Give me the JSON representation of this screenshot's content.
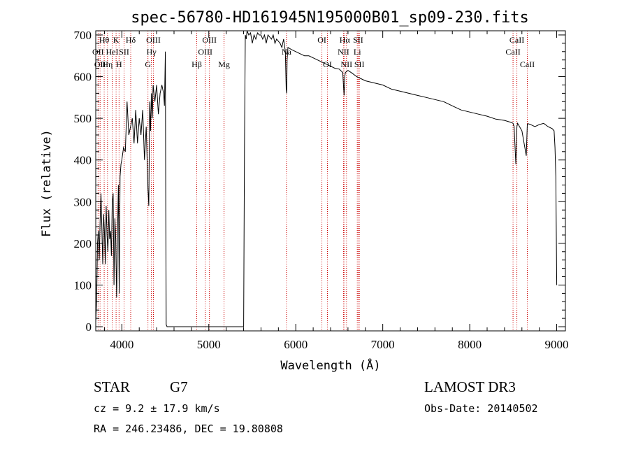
{
  "chart_data": {
    "type": "line",
    "title": "spec-56780-HD161945N195000B01_sp09-230.fits",
    "xlabel": "Wavelength (Å)",
    "ylabel": "Flux (relative)",
    "xlim": [
      3700,
      9100
    ],
    "ylim": [
      -10,
      710
    ],
    "x_ticks": [
      4000,
      5000,
      6000,
      7000,
      8000,
      9000
    ],
    "y_ticks": [
      0,
      100,
      200,
      300,
      400,
      500,
      600,
      700
    ],
    "grid": false,
    "series": [
      {
        "x": [
          3700,
          3710,
          3720,
          3730,
          3740,
          3750,
          3760,
          3770,
          3780,
          3790,
          3800,
          3810,
          3820,
          3830,
          3840,
          3850,
          3860,
          3870,
          3880,
          3890,
          3900,
          3910,
          3920,
          3930,
          3940,
          3950,
          3960,
          3970,
          3980,
          3990,
          4000,
          4020,
          4040,
          4060,
          4080,
          4100,
          4120,
          4140,
          4160,
          4180,
          4200,
          4220,
          4240,
          4260,
          4280,
          4300,
          4310,
          4320,
          4330,
          4340,
          4350,
          4360,
          4380,
          4400,
          4420,
          4440,
          4460,
          4480,
          4490,
          4500,
          4505,
          4510,
          4520,
          4540,
          4600,
          5000,
          5400,
          5410,
          5420,
          5430,
          5440,
          5460,
          5480,
          5500,
          5520,
          5540,
          5560,
          5580,
          5600,
          5620,
          5640,
          5660,
          5680,
          5700,
          5720,
          5740,
          5760,
          5780,
          5800,
          5820,
          5840,
          5860,
          5880,
          5890,
          5895,
          5900,
          5910,
          5950,
          6000,
          6050,
          6100,
          6150,
          6200,
          6250,
          6300,
          6350,
          6400,
          6450,
          6500,
          6540,
          6555,
          6563,
          6570,
          6600,
          6650,
          6700,
          6750,
          6800,
          6900,
          7000,
          7100,
          7200,
          7300,
          7400,
          7500,
          7600,
          7700,
          7800,
          7900,
          8000,
          8100,
          8200,
          8300,
          8400,
          8480,
          8498,
          8510,
          8530,
          8542,
          8550,
          8600,
          8650,
          8662,
          8675,
          8700,
          8750,
          8800,
          8850,
          8900,
          8950,
          8970,
          8980,
          8990,
          9000
        ],
        "values": [
          10,
          60,
          200,
          230,
          160,
          250,
          320,
          240,
          150,
          270,
          230,
          150,
          290,
          220,
          180,
          280,
          210,
          230,
          170,
          300,
          320,
          100,
          260,
          210,
          70,
          220,
          340,
          80,
          360,
          390,
          400,
          430,
          420,
          540,
          460,
          480,
          500,
          440,
          520,
          440,
          500,
          460,
          520,
          400,
          480,
          330,
          290,
          540,
          470,
          560,
          500,
          580,
          540,
          580,
          510,
          560,
          580,
          560,
          530,
          660,
          280,
          5,
          0,
          0,
          0,
          0,
          0,
          430,
          700,
          690,
          710,
          700,
          705,
          680,
          700,
          690,
          705,
          700,
          700,
          690,
          700,
          680,
          700,
          695,
          690,
          700,
          680,
          690,
          685,
          680,
          670,
          690,
          660,
          570,
          560,
          640,
          670,
          665,
          660,
          655,
          650,
          650,
          645,
          640,
          635,
          630,
          625,
          620,
          618,
          610,
          555,
          600,
          610,
          615,
          608,
          600,
          595,
          590,
          585,
          580,
          570,
          565,
          560,
          555,
          550,
          545,
          540,
          530,
          520,
          515,
          510,
          505,
          498,
          495,
          490,
          488,
          480,
          390,
          480,
          488,
          470,
          410,
          486,
          487,
          485,
          480,
          485,
          488,
          480,
          475,
          470,
          430,
          360,
          100
        ]
      }
    ],
    "line_markers": [
      {
        "wl": 3727,
        "label": "OII",
        "row": 2
      },
      {
        "wl": 3750,
        "label": "OII",
        "row": 3
      },
      {
        "wl": 3797,
        "label": "Hθ",
        "row": 1
      },
      {
        "wl": 3835,
        "label": "Hη",
        "row": 3
      },
      {
        "wl": 3889,
        "label": "HeI",
        "row": 2
      },
      {
        "wl": 3934,
        "label": "K",
        "row": 1
      },
      {
        "wl": 3968,
        "label": "H",
        "row": 3
      },
      {
        "wl": 4026,
        "label": "SII",
        "row": 2
      },
      {
        "wl": 4102,
        "label": "Hδ",
        "row": 1
      },
      {
        "wl": 4300,
        "label": "G",
        "row": 3
      },
      {
        "wl": 4340,
        "label": "Hγ",
        "row": 2
      },
      {
        "wl": 4363,
        "label": "OIII",
        "row": 1
      },
      {
        "wl": 4861,
        "label": "Hβ",
        "row": 3
      },
      {
        "wl": 4959,
        "label": "OIII",
        "row": 2
      },
      {
        "wl": 5007,
        "label": "OIII",
        "row": 1
      },
      {
        "wl": 5175,
        "label": "Mg",
        "row": 3
      },
      {
        "wl": 5893,
        "label": "Na",
        "row": 2
      },
      {
        "wl": 6300,
        "label": "OI",
        "row": 1
      },
      {
        "wl": 6364,
        "label": "OI",
        "row": 3
      },
      {
        "wl": 6548,
        "label": "NII",
        "row": 2
      },
      {
        "wl": 6563,
        "label": "Hα",
        "row": 1
      },
      {
        "wl": 6583,
        "label": "NII",
        "row": 3
      },
      {
        "wl": 6707,
        "label": "Li",
        "row": 2
      },
      {
        "wl": 6717,
        "label": "SII",
        "row": 1
      },
      {
        "wl": 6731,
        "label": "SII",
        "row": 3
      },
      {
        "wl": 8498,
        "label": "CaII",
        "row": 2
      },
      {
        "wl": 8542,
        "label": "CaII",
        "row": 1
      },
      {
        "wl": 8662,
        "label": "CaII",
        "row": 3
      }
    ],
    "marker_color": "#cc0000"
  },
  "info": {
    "object_class": "STAR",
    "subclass": "G7",
    "survey": "LAMOST DR3",
    "redshift": "cz = 9.2 ± 17.9 km/s",
    "obs_date": "Obs-Date: 20140502",
    "coords": "RA = 246.23486, DEC =  19.80808"
  }
}
